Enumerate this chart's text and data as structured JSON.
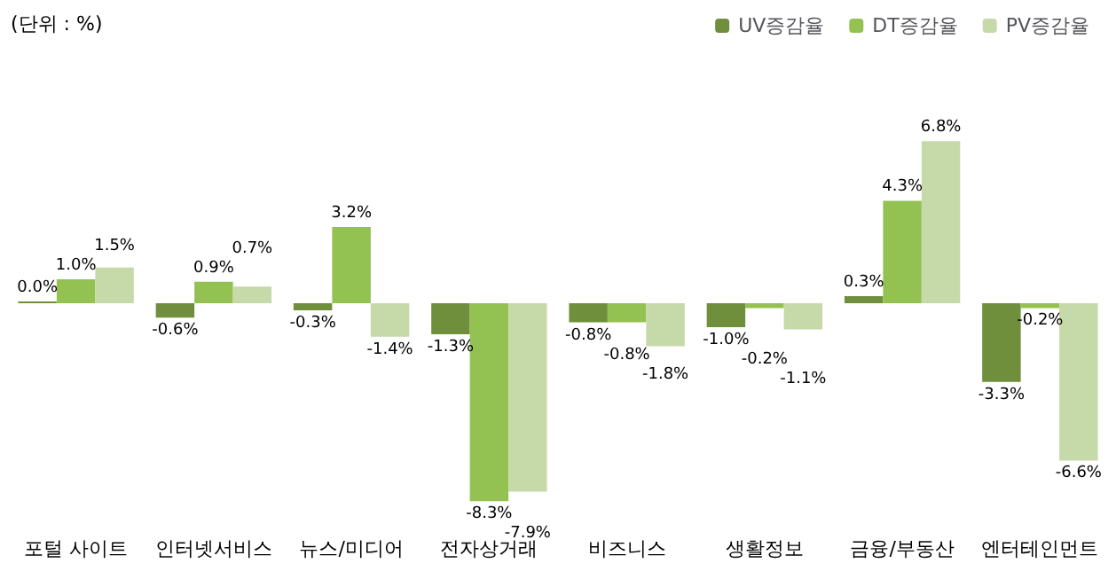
{
  "chart_data": {
    "type": "bar",
    "annotations": [
      "(단위 : %)"
    ],
    "categories": [
      "포털 사이트",
      "인터넷서비스",
      "뉴스/미디어",
      "전자상거래",
      "비즈니스",
      "생활정보",
      "금융/부동산",
      "엔터테인먼트"
    ],
    "series": [
      {
        "name": "UV증감율",
        "color": "#6f8f3c",
        "values": [
          0.0,
          -0.6,
          -0.3,
          -1.3,
          -0.8,
          -1.0,
          0.3,
          -3.3
        ],
        "value_labels": [
          "0.0%",
          "-0.6%",
          "-0.3%",
          "-1.3%",
          "-0.8%",
          "-1.0%",
          "0.3%",
          "-3.3%"
        ]
      },
      {
        "name": "DT증감율",
        "color": "#93c152",
        "values": [
          1.0,
          0.9,
          3.2,
          -8.3,
          -0.8,
          -0.2,
          4.3,
          -0.2
        ],
        "value_labels": [
          "1.0%",
          "0.9%",
          "3.2%",
          "-8.3%",
          "-0.8%",
          "-0.2%",
          "4.3%",
          "-0.2%"
        ]
      },
      {
        "name": "PV증감율",
        "color": "#c5d9a9",
        "values": [
          1.5,
          0.7,
          -1.4,
          -7.9,
          -1.8,
          -1.1,
          6.8,
          -6.6
        ],
        "value_labels": [
          "1.5%",
          "0.7%",
          "-1.4%",
          "-7.9%",
          "-1.8%",
          "-1.1%",
          "6.8%",
          "-6.6%"
        ]
      }
    ],
    "legend": "top right"
  }
}
